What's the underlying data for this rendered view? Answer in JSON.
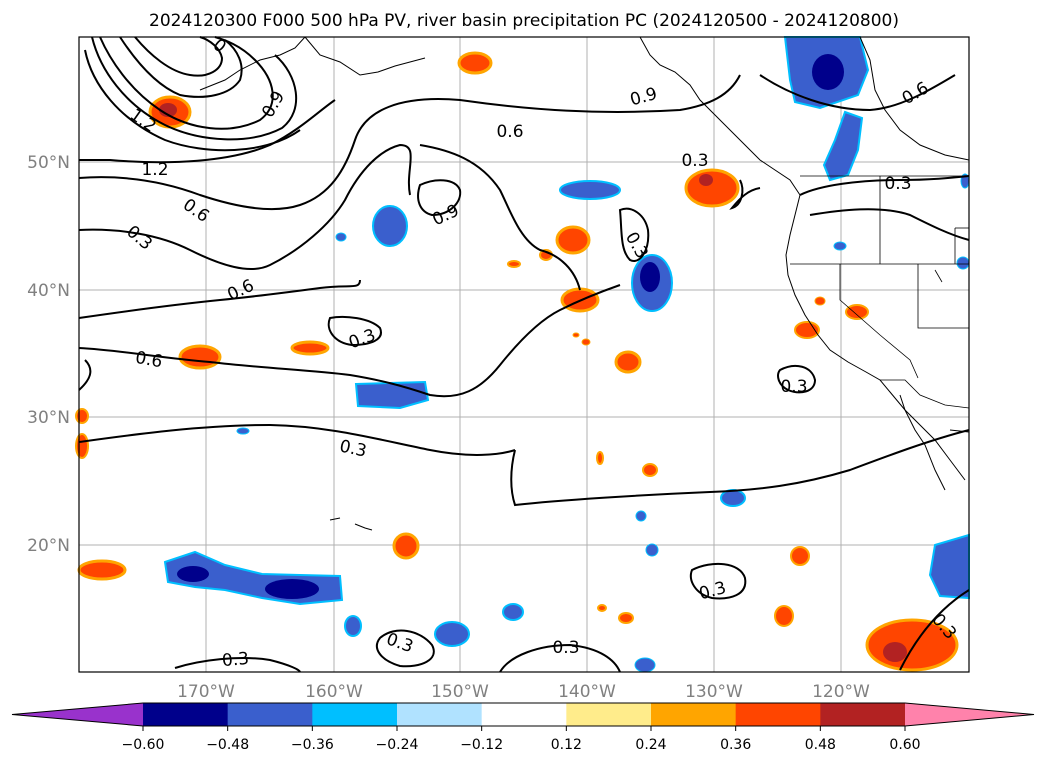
{
  "figure": {
    "title": "2024120300 F000 500 hPa PV, river basin precipitation PC (2024120500 - 2024120800)"
  },
  "map": {
    "lon_labels": [
      "170°W",
      "160°W",
      "150°W",
      "140°W",
      "130°W",
      "120°W"
    ],
    "lat_labels": [
      "50°N",
      "40°N",
      "30°N",
      "20°N"
    ],
    "pv_contour_labels": [
      "1.2",
      "1.2",
      "0.9",
      "0.9",
      "0.9",
      "0.6",
      "0.6",
      "0.6",
      "0.6",
      "0.6",
      "0.3",
      "0.3",
      "0.3",
      "0.3",
      "0.3",
      "0.3",
      "0.3",
      "0.3",
      "0.3",
      "0.3",
      "0.3",
      "0.3",
      "0"
    ]
  },
  "colorbar": {
    "tick_labels": [
      "−0.60",
      "−0.48",
      "−0.36",
      "−0.24",
      "−0.12",
      "0.12",
      "0.24",
      "0.36",
      "0.48",
      "0.60"
    ],
    "colors": [
      "#9932cc",
      "#00008b",
      "#3a5fcd",
      "#00bfff",
      "#b0e2ff",
      "#ffffff",
      "#ffec8b",
      "#ffa500",
      "#ff4500",
      "#b22222",
      "#ff82ab"
    ],
    "bounds": [
      -0.6,
      -0.48,
      -0.36,
      -0.24,
      -0.12,
      0.12,
      0.24,
      0.36,
      0.48,
      0.6
    ]
  }
}
